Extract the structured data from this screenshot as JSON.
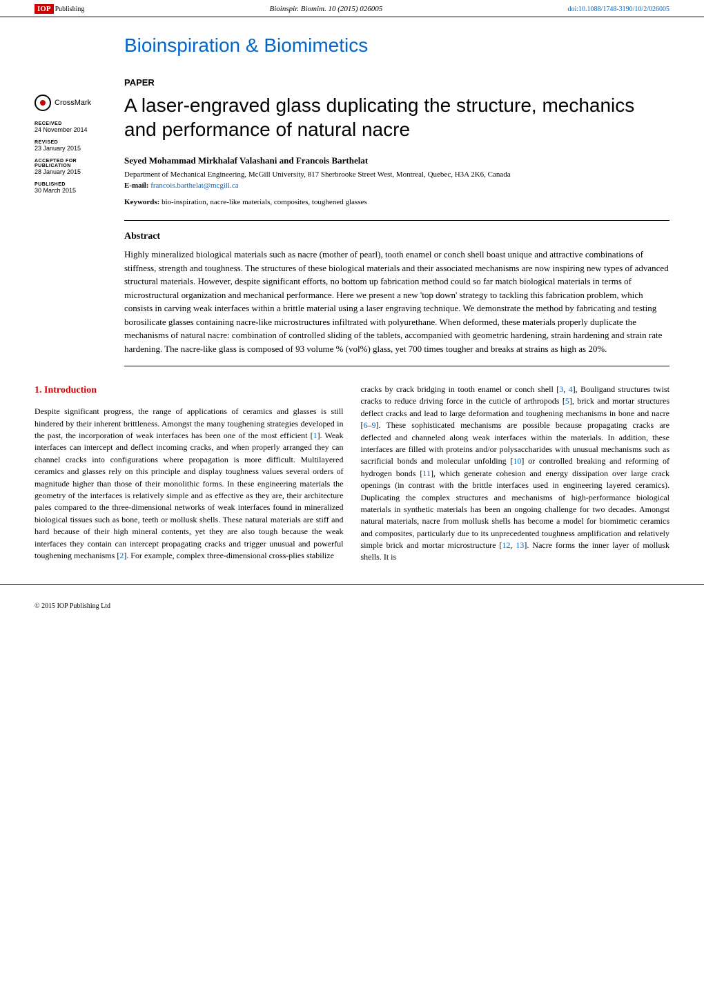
{
  "header": {
    "publisher_iop": "IOP",
    "publisher_text": "Publishing",
    "citation": "Bioinspir. Biomim. 10 (2015) 026005",
    "doi": "doi:10.1088/1748-3190/10/2/026005"
  },
  "journal_title": "Bioinspiration & Biomimetics",
  "crossmark_label": "CrossMark",
  "meta": {
    "received_label": "RECEIVED",
    "received_value": "24 November 2014",
    "revised_label": "REVISED",
    "revised_value": "23 January 2015",
    "accepted_label": "ACCEPTED FOR PUBLICATION",
    "accepted_value": "28 January 2015",
    "published_label": "PUBLISHED",
    "published_value": "30 March 2015"
  },
  "paper": {
    "label": "PAPER",
    "title": "A laser-engraved glass duplicating the structure, mechanics and performance of natural nacre",
    "authors": "Seyed Mohammad Mirkhalaf Valashani and Francois Barthelat",
    "affiliation": "Department of Mechanical Engineering, McGill University, 817 Sherbrooke Street West, Montreal, Quebec, H3A 2K6, Canada",
    "email_label": "E-mail: ",
    "email": "francois.barthelat@mcgill.ca",
    "keywords_label": "Keywords: ",
    "keywords": "bio-inspiration, nacre-like materials, composites, toughened glasses"
  },
  "abstract": {
    "heading": "Abstract",
    "text": "Highly mineralized biological materials such as nacre (mother of pearl), tooth enamel or conch shell boast unique and attractive combinations of stiffness, strength and toughness. The structures of these biological materials and their associated mechanisms are now inspiring new types of advanced structural materials. However, despite significant efforts, no bottom up fabrication method could so far match biological materials in terms of microstructural organization and mechanical performance. Here we present a new 'top down' strategy to tackling this fabrication problem, which consists in carving weak interfaces within a brittle material using a laser engraving technique. We demonstrate the method by fabricating and testing borosilicate glasses containing nacre-like microstructures infiltrated with polyurethane. When deformed, these materials properly duplicate the mechanisms of natural nacre: combination of controlled sliding of the tablets, accompanied with geometric hardening, strain hardening and strain rate hardening. The nacre-like glass is composed of 93 volume % (vol%) glass, yet 700 times tougher and breaks at strains as high as 20%."
  },
  "body": {
    "section_heading": "1. Introduction",
    "col1_p1": "Despite significant progress, the range of applications of ceramics and glasses is still hindered by their inherent brittleness. Amongst the many toughening strategies developed in the past, the incorporation of weak interfaces has been one of the most efficient [",
    "ref1": "1",
    "col1_p2": "]. Weak interfaces can intercept and deflect incoming cracks, and when properly arranged they can channel cracks into configurations where propagation is more difficult. Multilayered ceramics and glasses rely on this principle and display toughness values several orders of magnitude higher than those of their monolithic forms. In these engineering materials the geometry of the interfaces is relatively simple and as effective as they are, their architecture pales compared to the three-dimensional networks of weak interfaces found in mineralized biological tissues such as bone, teeth or mollusk shells. These natural materials are stiff and hard because of their high mineral contents, yet they are also tough because the weak interfaces they contain can intercept propagating cracks and trigger unusual and powerful toughening mechanisms [",
    "ref2": "2",
    "col1_p3": "]. For example, complex three-dimensional cross-plies stabilize",
    "col2_p1": "cracks by crack bridging in tooth enamel or conch shell [",
    "ref3": "3",
    "ref4": "4",
    "col2_p2": "], Bouligand structures twist cracks to reduce driving force in the cuticle of arthropods [",
    "ref5": "5",
    "col2_p3": "], brick and mortar structures deflect cracks and lead to large deformation and toughening mechanisms in bone and nacre [",
    "ref6": "6",
    "ref9": "9",
    "col2_p4": "]. These sophisticated mechanisms are possible because propagating cracks are deflected and channeled along weak interfaces within the materials. In addition, these interfaces are filled with proteins and/or polysaccharides with unusual mechanisms such as sacrificial bonds and molecular unfolding [",
    "ref10": "10",
    "col2_p5": "] or controlled breaking and reforming of hydrogen bonds [",
    "ref11": "11",
    "col2_p6": "], which generate cohesion and energy dissipation over large crack openings (in contrast with the brittle interfaces used in engineering layered ceramics). Duplicating the complex structures and mechanisms of high-performance biological materials in synthetic materials has been an ongoing challenge for two decades. Amongst natural materials, nacre from mollusk shells has become a model for biomimetic ceramics and composites, particularly due to its unprecedented toughness amplification and relatively simple brick and mortar microstructure [",
    "ref12": "12",
    "ref13": "13",
    "col2_p7": "]. Nacre forms the inner layer of mollusk shells. It is"
  },
  "footer": {
    "copyright": "© 2015 IOP Publishing Ltd"
  },
  "colors": {
    "accent_red": "#cc0000",
    "link_blue": "#0066cc",
    "text_black": "#000000",
    "background": "#ffffff"
  }
}
